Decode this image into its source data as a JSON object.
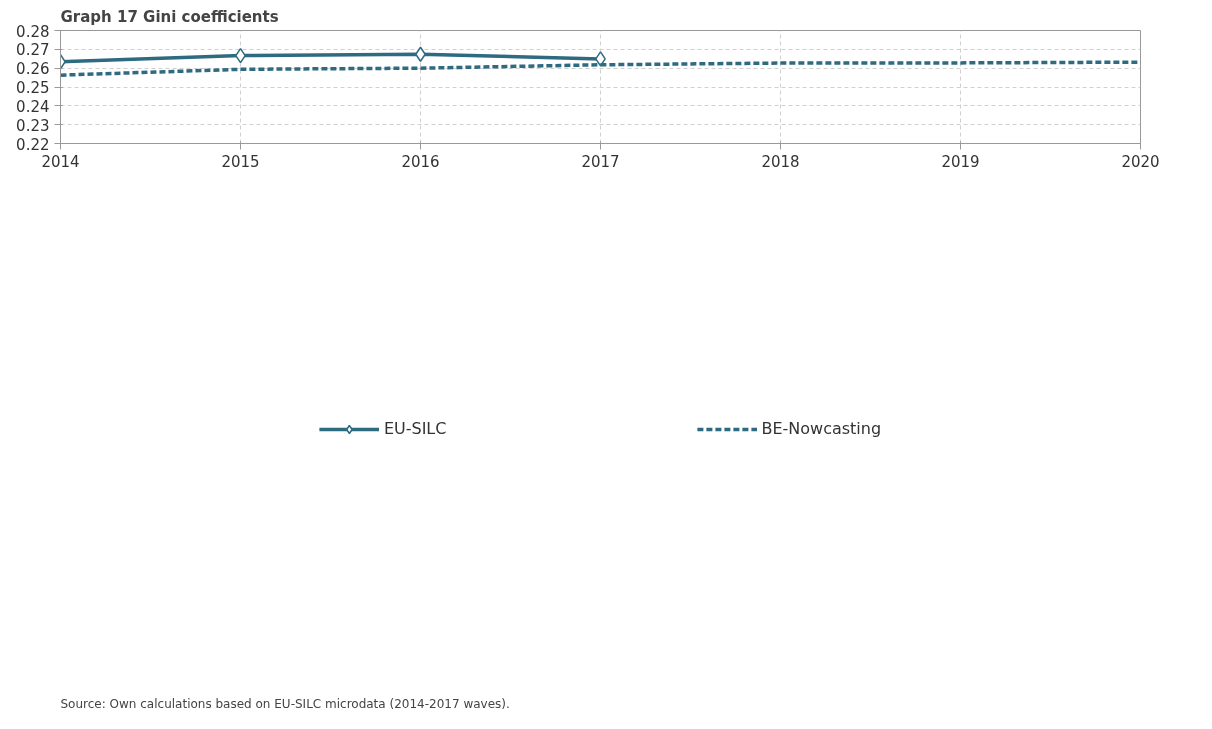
{
  "chart_data": {
    "type": "line",
    "title": "Graph 17    Gini coefficients",
    "x": [
      2014,
      2015,
      2016,
      2017,
      2018,
      2019,
      2020
    ],
    "series": [
      {
        "name": "EU-SILC",
        "color": "#2e6a80",
        "values": [
          0.2634,
          0.2667,
          0.2674,
          0.2649,
          null,
          null,
          null
        ],
        "marker": "diamond",
        "line_style": "solid"
      },
      {
        "name": "BE-Nowcasting",
        "color": "#2e6a80",
        "values": [
          0.2563,
          0.2594,
          0.26,
          0.2618,
          0.2627,
          0.2628,
          0.2632
        ],
        "marker": "none",
        "line_style": "dashed"
      }
    ],
    "xlim": [
      2014,
      2020
    ],
    "xticks": [
      2014,
      2015,
      2016,
      2017,
      2018,
      2019,
      2020
    ],
    "ylim": [
      0.22,
      0.28
    ],
    "yticks": [
      0.22,
      0.23,
      0.24,
      0.25,
      0.26,
      0.27,
      0.28
    ],
    "grid": true,
    "legend": "bottom",
    "annotations": [
      "Source: Own calculations based on EU-SILC microdata (2014-2017 waves)."
    ]
  }
}
